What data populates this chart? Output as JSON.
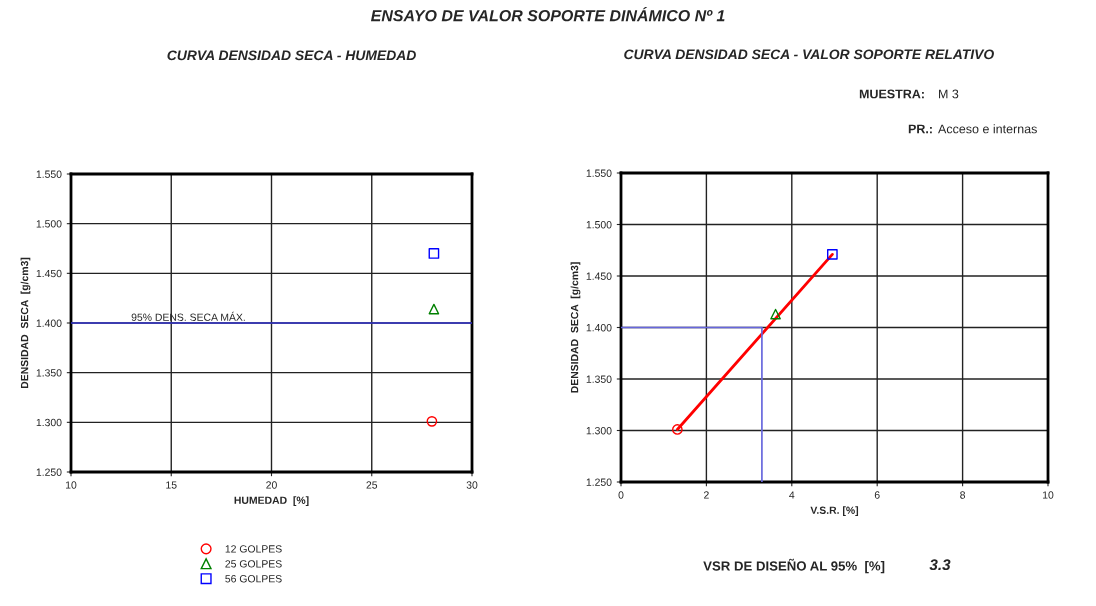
{
  "chart_data": [
    {
      "type": "scatter",
      "title": "CURVA DENSIDAD SECA - HUMEDAD",
      "xlabel": "HUMEDAD  [%]",
      "ylabel": "DENSIDAD  SECA  [g/cm3]",
      "annotations": [
        "ENSAYO DE VALOR SOPORTE DINÁMICO Nº 1"
      ],
      "series": [
        {
          "name": "12 GOLPES",
          "color": "#ff0000",
          "marker": "circle",
          "x": [
            28.0
          ],
          "values": [
            1.301
          ]
        },
        {
          "name": "25 GOLPES",
          "color": "#008000",
          "marker": "triangle",
          "x": [
            28.1
          ],
          "values": [
            1.414
          ]
        },
        {
          "name": "56 GOLPES",
          "color": "#0000ff",
          "marker": "square",
          "x": [
            28.1
          ],
          "values": [
            1.47
          ]
        }
      ],
      "ref_lines": [
        {
          "axis": "y",
          "value": 1.4,
          "label": "95% DENS. SECA MÁX.",
          "color": "#3333cc"
        }
      ],
      "xlim": [
        10,
        30
      ],
      "xticks": [
        10,
        15,
        20,
        25,
        30
      ],
      "ylim": [
        1.25,
        1.55
      ],
      "yticks": [
        {
          "value": 1.25,
          "label": "1.250"
        },
        {
          "value": 1.3,
          "label": "1.300"
        },
        {
          "value": 1.35,
          "label": "1.350"
        },
        {
          "value": 1.4,
          "label": "1.400"
        },
        {
          "value": 1.45,
          "label": "1.450"
        },
        {
          "value": 1.5,
          "label": "1.500"
        },
        {
          "value": 1.55,
          "label": "1.550"
        }
      ],
      "grid": true,
      "legend": "bottom left"
    },
    {
      "type": "scatter",
      "title": "CURVA DENSIDAD SECA - VALOR SOPORTE RELATIVO",
      "xlabel": "V.S.R. [%]",
      "ylabel": "DENSIDAD  SECA  [g/cm3]",
      "annotations": [
        "MUESTRA:",
        "M 3",
        "PR.:",
        "Acceso e internas",
        "VSR DE DISEÑO AL 95%  [%]",
        "3.3"
      ],
      "series": [
        {
          "type": "line",
          "color": "#ff0000",
          "marker": "none",
          "x": [
            1.32,
            4.95
          ],
          "values": [
            1.301,
            1.471
          ]
        },
        {
          "type": "line",
          "color": "#6666dd",
          "marker": "none",
          "x": [
            0,
            3.3,
            3.3
          ],
          "values": [
            1.4,
            1.4,
            1.25
          ]
        },
        {
          "color": "#ff0000",
          "marker": "circle",
          "x": [
            1.32
          ],
          "values": [
            1.301
          ]
        },
        {
          "color": "#008000",
          "marker": "triangle",
          "x": [
            3.62
          ],
          "values": [
            1.413
          ]
        },
        {
          "color": "#0000ff",
          "marker": "square",
          "x": [
            4.95
          ],
          "values": [
            1.471
          ]
        }
      ],
      "xlim": [
        0,
        10
      ],
      "xticks": [
        0,
        2,
        4,
        6,
        8,
        10
      ],
      "ylim": [
        1.25,
        1.55
      ],
      "yticks": [
        {
          "value": 1.25,
          "label": "1.250"
        },
        {
          "value": 1.3,
          "label": "1.300"
        },
        {
          "value": 1.35,
          "label": "1.350"
        },
        {
          "value": 1.4,
          "label": "1.400"
        },
        {
          "value": 1.45,
          "label": "1.450"
        },
        {
          "value": 1.5,
          "label": "1.500"
        },
        {
          "value": 1.55,
          "label": "1.550"
        }
      ],
      "grid": true
    }
  ]
}
